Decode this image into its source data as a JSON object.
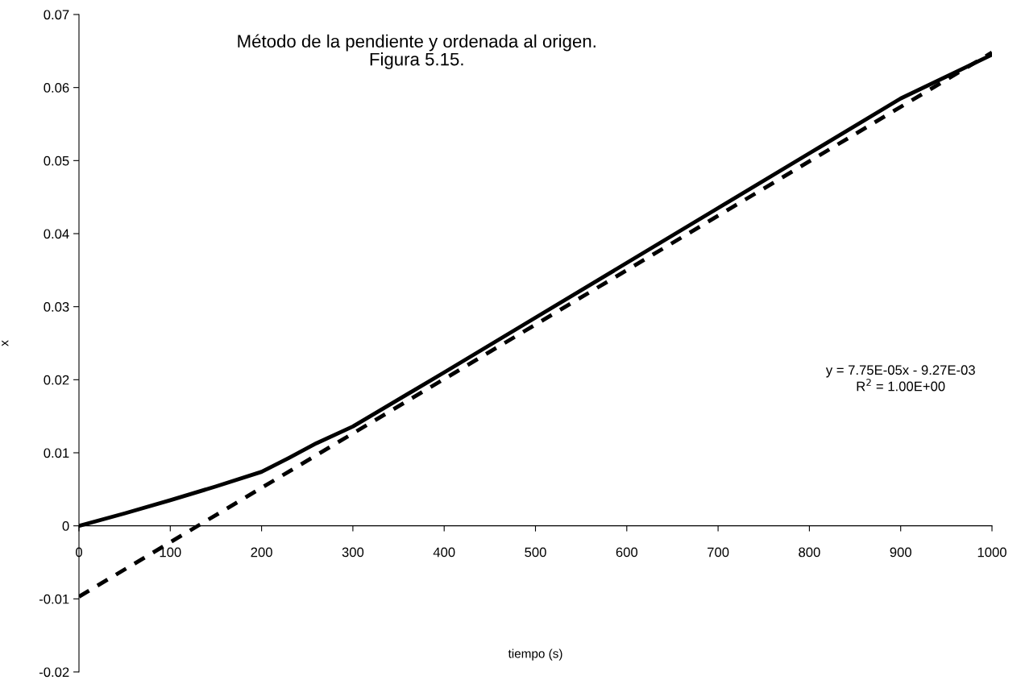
{
  "chart_data": {
    "type": "line",
    "title": "Método de la pendiente y ordenada al origen.\nFigura 5.15.",
    "xlabel": "tiempo (s)",
    "ylabel": "x",
    "xlim": [
      0,
      1000
    ],
    "xticks": [
      0,
      100,
      200,
      300,
      400,
      500,
      600,
      700,
      800,
      900,
      1000
    ],
    "ylim": [
      -0.02,
      0.07
    ],
    "yticks": [
      {
        "value": -0.02,
        "label": "-0.02"
      },
      {
        "value": -0.01,
        "label": "-0.01"
      },
      {
        "value": 0,
        "label": "0"
      },
      {
        "value": 0.01,
        "label": "0.01"
      },
      {
        "value": 0.02,
        "label": "0.02"
      },
      {
        "value": 0.03,
        "label": "0.03"
      },
      {
        "value": 0.04,
        "label": "0.04"
      },
      {
        "value": 0.05,
        "label": "0.05"
      },
      {
        "value": 0.06,
        "label": "0.06"
      },
      {
        "value": 0.07,
        "label": "0.07"
      }
    ],
    "grid": false,
    "legend": false,
    "marker": "none",
    "annotations": [
      "y = 7.75E-05x - 9.27E-03\nR$^{2}$ = 1.00E+00"
    ],
    "series": [
      {
        "color": "#000000",
        "line_style": "solid",
        "x": [
          0,
          50,
          100,
          150,
          200,
          230,
          260,
          300,
          400,
          500,
          600,
          700,
          800,
          900,
          1000
        ],
        "values": [
          0,
          0.0017,
          0.0035,
          0.0054,
          0.0074,
          0.0093,
          0.0113,
          0.0136,
          0.021,
          0.0285,
          0.036,
          0.0435,
          0.051,
          0.0585,
          0.0645
        ]
      },
      {
        "color": "#000000",
        "line_style": "dashed",
        "x": [
          0,
          1000
        ],
        "values": [
          -0.0097,
          0.0648
        ]
      }
    ]
  }
}
